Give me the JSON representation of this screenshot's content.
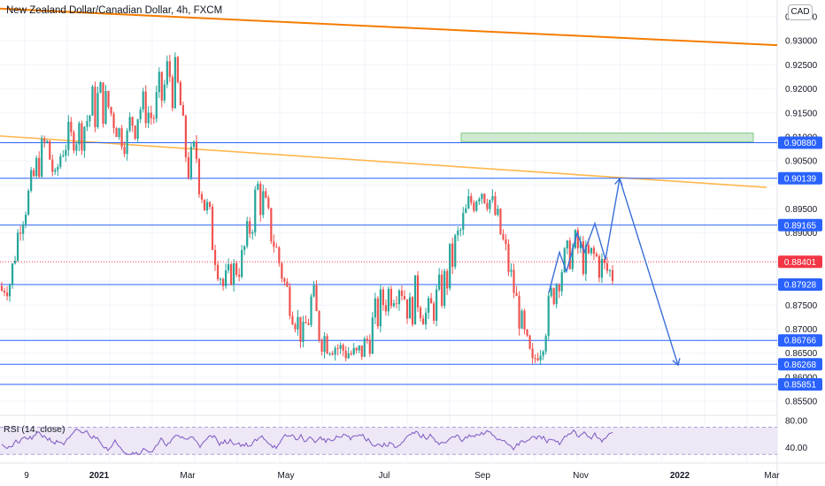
{
  "header": {
    "title": "New Zealand Dollar/Canadian Dollar, 4h, FXCM",
    "currency_button": "CAD"
  },
  "chart_data": {
    "type": "candlestick",
    "symbol": "New Zealand Dollar/Canadian Dollar",
    "timeframe": "4h",
    "source": "FXCM",
    "y_ticks": [
      "0.93500",
      "0.93000",
      "0.92500",
      "0.92000",
      "0.91500",
      "0.91000",
      "0.90500",
      "0.89500",
      "0.89000",
      "0.87500",
      "0.87000",
      "0.86500",
      "0.86000",
      "0.85500"
    ],
    "x_ticks": [
      "9",
      "2021",
      "Mar",
      "May",
      "Jul",
      "Sep",
      "Nov",
      "2022",
      "Mar"
    ],
    "ylim": [
      0.8528,
      0.9385
    ],
    "price_path": [
      [
        0.879,
        0.877
      ],
      [
        0.884,
        0.876
      ],
      [
        0.895,
        0.889
      ],
      [
        0.901,
        0.894
      ],
      [
        0.908,
        0.9
      ],
      [
        0.913,
        0.905
      ],
      [
        0.903,
        0.899
      ],
      [
        0.915,
        0.904
      ],
      [
        0.912,
        0.907
      ],
      [
        0.916,
        0.907
      ],
      [
        0.921,
        0.909
      ],
      [
        0.924,
        0.911
      ],
      [
        0.92,
        0.913
      ],
      [
        0.915,
        0.909
      ],
      [
        0.911,
        0.906
      ],
      [
        0.924,
        0.908
      ],
      [
        0.92,
        0.913
      ],
      [
        0.919,
        0.909
      ],
      [
        0.925,
        0.911
      ],
      [
        0.932,
        0.915
      ],
      [
        0.923,
        0.916
      ],
      [
        0.906,
        0.9
      ],
      [
        0.913,
        0.9
      ],
      [
        0.901,
        0.89
      ],
      [
        0.892,
        0.883
      ],
      [
        0.882,
        0.876
      ],
      [
        0.885,
        0.879
      ],
      [
        0.887,
        0.88
      ],
      [
        0.895,
        0.887
      ],
      [
        0.906,
        0.893
      ],
      [
        0.897,
        0.889
      ],
      [
        0.89,
        0.883
      ],
      [
        0.882,
        0.876
      ],
      [
        0.878,
        0.87
      ],
      [
        0.871,
        0.865
      ],
      [
        0.882,
        0.869
      ],
      [
        0.873,
        0.865
      ],
      [
        0.871,
        0.864
      ],
      [
        0.868,
        0.864
      ],
      [
        0.869,
        0.862
      ],
      [
        0.867,
        0.861
      ],
      [
        0.87,
        0.863
      ],
      [
        0.876,
        0.866
      ],
      [
        0.88,
        0.871
      ],
      [
        0.883,
        0.874
      ],
      [
        0.885,
        0.876
      ],
      [
        0.877,
        0.87
      ],
      [
        0.883,
        0.872
      ],
      [
        0.876,
        0.869
      ],
      [
        0.88,
        0.871
      ],
      [
        0.884,
        0.874
      ],
      [
        0.891,
        0.88
      ],
      [
        0.896,
        0.886
      ],
      [
        0.901,
        0.892
      ],
      [
        0.904,
        0.896
      ],
      [
        0.901,
        0.894
      ],
      [
        0.896,
        0.889
      ],
      [
        0.889,
        0.881
      ],
      [
        0.88,
        0.874
      ],
      [
        0.872,
        0.864
      ],
      [
        0.864,
        0.862
      ],
      [
        0.87,
        0.864
      ],
      [
        0.88,
        0.872
      ],
      [
        0.886,
        0.878
      ],
      [
        0.889,
        0.882
      ],
      [
        0.892,
        0.882
      ],
      [
        0.888,
        0.88
      ],
      [
        0.89,
        0.88
      ],
      [
        0.886,
        0.879
      ],
      [
        0.885,
        0.878
      ]
    ],
    "horizontal_levels": [
      {
        "value": 0.9088,
        "label": "0.90880"
      },
      {
        "value": 0.90139,
        "label": "0.90139"
      },
      {
        "value": 0.89165,
        "label": "0.89165"
      },
      {
        "value": 0.87928,
        "label": "0.87928"
      },
      {
        "value": 0.86766,
        "label": "0.86766"
      },
      {
        "value": 0.86268,
        "label": "0.86268"
      },
      {
        "value": 0.85851,
        "label": "0.85851"
      }
    ],
    "last_price": {
      "value": 0.88401,
      "label": "0.88401"
    },
    "resistance_zone": {
      "from": 0.909,
      "to": 0.9108
    },
    "trendlines": [
      {
        "name": "upper",
        "color": "#f57c00",
        "from": 0.9367,
        "to": 0.9291
      },
      {
        "name": "lower",
        "color": "#ffb74d",
        "from": 0.9102,
        "to": 0.8995
      }
    ],
    "projection_path": [
      0.8776,
      0.886,
      0.882,
      0.89,
      0.886,
      0.892,
      0.8845,
      0.9013,
      0.8625
    ],
    "rsi": {
      "label": "RSI (14, close)",
      "ticks": [
        "80.00",
        "40.00"
      ],
      "band": [
        30,
        70
      ],
      "ylim": [
        20,
        85
      ]
    },
    "colors": {
      "up": "#26a69a",
      "down": "#ef5350",
      "level": "#2962ff",
      "projection": "#3a6fd8",
      "zone_fill": "#c8e6c9",
      "zone_border": "#81c784",
      "rsi_line": "#7e57c2",
      "rsi_band": "#ede7f6",
      "last_price": "#f23645"
    }
  }
}
